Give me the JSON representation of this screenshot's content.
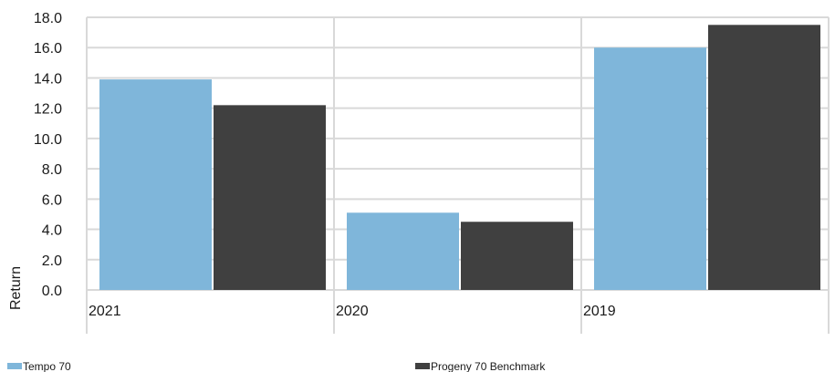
{
  "chart_data": {
    "type": "bar",
    "categories": [
      "2021",
      "2020",
      "2019"
    ],
    "series": [
      {
        "name": "Tempo 70",
        "values": [
          13.9,
          5.1,
          16.0
        ],
        "color": "#7fb6da"
      },
      {
        "name": "Progeny 70 Benchmark",
        "values": [
          12.2,
          4.5,
          17.5
        ],
        "color": "#404040"
      }
    ],
    "title": "",
    "xlabel": "",
    "ylabel": "Return",
    "ylim": [
      0,
      18
    ],
    "yticks": [
      "0.0",
      "2.0",
      "4.0",
      "6.0",
      "8.0",
      "10.0",
      "12.0",
      "14.0",
      "16.0",
      "18.0"
    ],
    "grid": true,
    "legend_position": "bottom"
  }
}
